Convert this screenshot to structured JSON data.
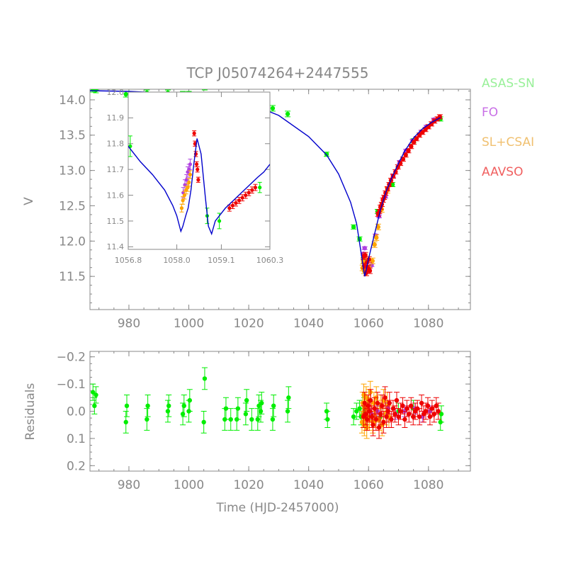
{
  "figure": {
    "title": "TCP J05074264+2447555",
    "xlabel": "Time (HJD-2457000)"
  },
  "legend": [
    {
      "label": "ASAS-SN",
      "color": "#98f098"
    },
    {
      "label": "FO",
      "color": "#c86ee6"
    },
    {
      "label": "SL+CSAI",
      "color": "#f0c070"
    },
    {
      "label": "AAVSO",
      "color": "#f06060"
    }
  ],
  "colors": {
    "asassn": "#00ee00",
    "fo": "#b040e0",
    "slcsai": "#ffa500",
    "aavso": "#ee0000",
    "model": "#0000cc",
    "axis": "#888888"
  },
  "chart_data": [
    {
      "id": "main",
      "type": "scatter",
      "title": "TCP J05074264+2447555",
      "xlabel": "",
      "ylabel": "V",
      "xlim": [
        967,
        1094
      ],
      "ylim": [
        14.15,
        11.03
      ],
      "xticks": [
        "980",
        "1000",
        "1020",
        "1040",
        "1060",
        "1080"
      ],
      "yticks": [
        "11.5",
        "12.0",
        "12.5",
        "13.0",
        "13.5",
        "14.0"
      ],
      "model_curve": {
        "name": "model",
        "x": [
          967,
          980,
          1000,
          1010,
          1020,
          1030,
          1040,
          1046,
          1050,
          1054,
          1056,
          1058,
          1058.5,
          1058.75,
          1059,
          1059.5,
          1060,
          1062,
          1064,
          1066,
          1068,
          1070,
          1072,
          1075,
          1078,
          1081,
          1084
        ],
        "y": [
          14.13,
          14.12,
          14.08,
          14.04,
          13.95,
          13.78,
          13.48,
          13.22,
          12.95,
          12.55,
          12.25,
          11.7,
          11.55,
          11.5,
          11.55,
          11.65,
          11.75,
          12.1,
          12.45,
          12.72,
          12.92,
          13.1,
          13.27,
          13.46,
          13.59,
          13.68,
          13.75
        ]
      },
      "series": [
        {
          "name": "ASAS-SN",
          "x": [
            968,
            969,
            979,
            986,
            993,
            998,
            1000,
            1005,
            1005.3,
            1012,
            1014,
            1016,
            1019,
            1021,
            1023,
            1024,
            1028,
            1033,
            1046,
            1055,
            1057,
            1058.4,
            1060,
            1063,
            1068,
            1075,
            1084
          ],
          "y": [
            14.15,
            14.14,
            14.08,
            14.1,
            14.1,
            14.08,
            14.08,
            14.05,
            14.18,
            14.03,
            14.02,
            14.0,
            14.0,
            13.97,
            13.92,
            13.88,
            13.88,
            13.8,
            13.23,
            12.2,
            12.03,
            11.73,
            11.6,
            12.42,
            12.8,
            13.42,
            13.73
          ],
          "err": [
            0.04,
            0.04,
            0.04,
            0.04,
            0.04,
            0.04,
            0.04,
            0.04,
            0.04,
            0.04,
            0.04,
            0.04,
            0.04,
            0.04,
            0.04,
            0.04,
            0.04,
            0.04,
            0.03,
            0.03,
            0.03,
            0.04,
            0.04,
            0.03,
            0.03,
            0.03,
            0.03
          ]
        },
        {
          "name": "FO",
          "x": [
            1058.3,
            1058.7,
            1059.2,
            1060.1,
            1061.0,
            1062.3,
            1063.5,
            1065.6,
            1068.2,
            1070.4,
            1072.5,
            1074.7,
            1077.6,
            1079.3,
            1081.8
          ],
          "y": [
            11.82,
            11.9,
            11.62,
            11.58,
            11.66,
            12.08,
            12.35,
            12.63,
            12.92,
            13.12,
            13.28,
            13.42,
            13.55,
            13.62,
            13.72
          ],
          "err": [
            0.02,
            0.02,
            0.02,
            0.02,
            0.02,
            0.02,
            0.02,
            0.02,
            0.02,
            0.02,
            0.02,
            0.02,
            0.02,
            0.02,
            0.02
          ]
        },
        {
          "name": "SL+CSAI",
          "x": [
            1058.0,
            1058.2,
            1058.5,
            1058.8,
            1059.2,
            1059.6,
            1060.2,
            1061.3,
            1062.0,
            1062.6,
            1063.2,
            1064.4,
            1066.3
          ],
          "y": [
            11.62,
            11.72,
            11.58,
            11.78,
            11.55,
            11.6,
            11.62,
            11.72,
            11.95,
            12.05,
            12.2,
            12.45,
            12.72
          ],
          "err": [
            0.04,
            0.04,
            0.04,
            0.04,
            0.04,
            0.04,
            0.04,
            0.04,
            0.04,
            0.04,
            0.04,
            0.04,
            0.04
          ]
        },
        {
          "name": "AAVSO",
          "x": [
            1058.3,
            1058.6,
            1058.9,
            1059.2,
            1059.5,
            1059.8,
            1060.1,
            1060.4,
            1063.2,
            1063.6,
            1064.0,
            1064.4,
            1064.8,
            1065.2,
            1065.7,
            1066.3,
            1066.9,
            1067.5,
            1068.2,
            1069.0,
            1069.8,
            1070.6,
            1071.5,
            1072.4,
            1073.3,
            1074.2,
            1075.1,
            1076.0,
            1077.0,
            1078.0,
            1079.0,
            1080.0,
            1081.0,
            1082.0,
            1083.0,
            1083.8
          ],
          "y": [
            11.78,
            11.65,
            11.8,
            11.55,
            11.7,
            11.62,
            11.74,
            11.58,
            12.38,
            12.42,
            12.48,
            12.52,
            12.58,
            12.62,
            12.68,
            12.74,
            12.8,
            12.86,
            12.92,
            12.98,
            13.05,
            13.1,
            13.16,
            13.22,
            13.28,
            13.34,
            13.4,
            13.45,
            13.5,
            13.54,
            13.58,
            13.62,
            13.66,
            13.7,
            13.73,
            13.76
          ],
          "err": [
            0.04,
            0.04,
            0.04,
            0.04,
            0.04,
            0.04,
            0.04,
            0.04,
            0.03,
            0.03,
            0.03,
            0.03,
            0.03,
            0.03,
            0.03,
            0.03,
            0.03,
            0.03,
            0.03,
            0.03,
            0.03,
            0.03,
            0.03,
            0.03,
            0.03,
            0.03,
            0.03,
            0.03,
            0.03,
            0.03,
            0.03,
            0.03,
            0.03,
            0.03,
            0.03,
            0.03
          ]
        }
      ]
    },
    {
      "id": "inset",
      "type": "scatter",
      "title": "",
      "xlabel": "",
      "ylabel": "",
      "xlim": [
        1056.8,
        1060.3
      ],
      "ylim": [
        12.0,
        11.39
      ],
      "xticks": [
        "1056.8",
        "1058.0",
        "1059.1",
        "1060.3"
      ],
      "yticks": [
        "11.4",
        "11.5",
        "11.6",
        "11.7",
        "11.8",
        "11.9",
        "12.0"
      ],
      "model_curve": {
        "name": "model",
        "x": [
          1056.8,
          1057.1,
          1057.4,
          1057.7,
          1057.9,
          1058.0,
          1058.1,
          1058.15,
          1058.22,
          1058.28,
          1058.35,
          1058.42,
          1058.5,
          1058.6,
          1058.7,
          1058.78,
          1058.86,
          1058.95,
          1059.05,
          1059.2,
          1059.4,
          1059.6,
          1059.8,
          1060.0,
          1060.15,
          1060.3
        ],
        "y": [
          11.79,
          11.73,
          11.68,
          11.62,
          11.56,
          11.52,
          11.46,
          11.48,
          11.52,
          11.55,
          11.62,
          11.72,
          11.82,
          11.76,
          11.6,
          11.48,
          11.45,
          11.5,
          11.52,
          11.55,
          11.58,
          11.61,
          11.64,
          11.67,
          11.69,
          11.72
        ]
      },
      "series": [
        {
          "name": "ASAS-SN",
          "x": [
            1056.85,
            1058.75,
            1059.05,
            1060.05
          ],
          "y": [
            11.79,
            11.52,
            11.5,
            11.63
          ],
          "err": [
            0.04,
            0.03,
            0.03,
            0.02
          ]
        },
        {
          "name": "FO",
          "x": [
            1058.16,
            1058.2,
            1058.24,
            1058.27,
            1058.3,
            1058.33
          ],
          "y": [
            11.61,
            11.64,
            11.66,
            11.69,
            11.7,
            11.72
          ],
          "err": [
            0.02,
            0.02,
            0.02,
            0.02,
            0.02,
            0.02
          ]
        },
        {
          "name": "SL+CSAI",
          "x": [
            1058.12,
            1058.15,
            1058.19,
            1058.23,
            1058.27,
            1058.3,
            1058.33
          ],
          "y": [
            11.55,
            11.58,
            11.6,
            11.62,
            11.63,
            11.65,
            11.68
          ],
          "err": [
            0.015,
            0.015,
            0.015,
            0.015,
            0.015,
            0.015,
            0.015
          ]
        },
        {
          "name": "AAVSO",
          "x": [
            1058.43,
            1058.45,
            1058.47,
            1058.49,
            1058.51,
            1058.53,
            1059.3,
            1059.38,
            1059.46,
            1059.54,
            1059.62,
            1059.7,
            1059.78,
            1059.86,
            1059.94
          ],
          "y": [
            11.84,
            11.8,
            11.76,
            11.72,
            11.7,
            11.66,
            11.55,
            11.56,
            11.57,
            11.58,
            11.59,
            11.6,
            11.61,
            11.62,
            11.63
          ],
          "err": [
            0.01,
            0.01,
            0.01,
            0.01,
            0.01,
            0.01,
            0.012,
            0.012,
            0.012,
            0.012,
            0.012,
            0.012,
            0.012,
            0.012,
            0.012
          ]
        }
      ]
    },
    {
      "id": "residuals",
      "type": "scatter",
      "title": "",
      "xlabel": "Time (HJD-2457000)",
      "ylabel": "Residuals",
      "xlim": [
        967,
        1094
      ],
      "ylim": [
        -0.22,
        0.22
      ],
      "xticks": [
        "980",
        "1000",
        "1020",
        "1040",
        "1060",
        "1080"
      ],
      "yticks": [
        "0.2",
        "0.1",
        "0.0",
        "−0.1",
        "−0.2"
      ],
      "series": [
        {
          "name": "ASAS-SN",
          "x": [
            968,
            968.5,
            969,
            979,
            979.3,
            986,
            986.3,
            993,
            993.3,
            998,
            998.4,
            1000,
            1000.3,
            1005,
            1005.3,
            1012,
            1012.4,
            1014,
            1016,
            1016.4,
            1019,
            1019.3,
            1021,
            1023,
            1023.4,
            1024,
            1024.3,
            1028,
            1028.3,
            1033,
            1033.3,
            1046,
            1046.3,
            1055,
            1056,
            1057,
            1057.5,
            1058.5,
            1064,
            1070,
            1075,
            1084,
            1084.3
          ],
          "y": [
            -0.07,
            -0.02,
            -0.06,
            0.04,
            -0.02,
            0.03,
            -0.02,
            0.0,
            -0.02,
            0.01,
            -0.02,
            0.0,
            -0.04,
            0.04,
            -0.12,
            0.03,
            -0.01,
            0.03,
            0.03,
            -0.01,
            0.01,
            -0.04,
            0.03,
            0.03,
            -0.02,
            0.0,
            -0.03,
            0.03,
            -0.02,
            0.0,
            -0.05,
            0.0,
            0.03,
            0.02,
            0.0,
            -0.01,
            0.02,
            -0.02,
            0.02,
            0.0,
            -0.01,
            0.04,
            0.01
          ],
          "err": [
            0.03,
            0.03,
            0.03,
            0.04,
            0.04,
            0.04,
            0.04,
            0.04,
            0.04,
            0.04,
            0.04,
            0.04,
            0.04,
            0.04,
            0.04,
            0.04,
            0.04,
            0.04,
            0.04,
            0.04,
            0.04,
            0.04,
            0.04,
            0.04,
            0.04,
            0.04,
            0.04,
            0.04,
            0.04,
            0.04,
            0.04,
            0.03,
            0.03,
            0.03,
            0.03,
            0.03,
            0.03,
            0.03,
            0.03,
            0.03,
            0.03,
            0.03,
            0.03
          ]
        },
        {
          "name": "SL+CSAI",
          "x": [
            1057.8,
            1058.0,
            1058.2,
            1058.4,
            1058.6,
            1058.8,
            1059.0,
            1059.2,
            1059.4,
            1059.6,
            1059.8,
            1060.0,
            1060.3,
            1060.6,
            1061.0,
            1061.4,
            1061.8,
            1062.2,
            1062.6,
            1063.0,
            1063.5,
            1064.0,
            1064.5,
            1065.0,
            1065.6,
            1066.2,
            1066.8
          ],
          "y": [
            0.04,
            -0.03,
            0.02,
            -0.06,
            0.05,
            -0.02,
            0.03,
            -0.05,
            0.06,
            -0.01,
            0.02,
            -0.04,
            0.03,
            -0.07,
            0.01,
            0.04,
            -0.03,
            0.02,
            -0.05,
            0.0,
            0.03,
            -0.02,
            0.05,
            -0.04,
            0.01,
            -0.03,
            0.02
          ],
          "err": [
            0.04,
            0.04,
            0.04,
            0.04,
            0.04,
            0.04,
            0.04,
            0.04,
            0.04,
            0.04,
            0.04,
            0.04,
            0.04,
            0.04,
            0.04,
            0.04,
            0.04,
            0.04,
            0.04,
            0.04,
            0.04,
            0.04,
            0.04,
            0.04,
            0.04,
            0.04,
            0.04
          ]
        },
        {
          "name": "FO",
          "x": [
            1061.0,
            1063.0,
            1066.5,
            1069.0,
            1072.0,
            1075.5,
            1078.0,
            1080.5
          ],
          "y": [
            0.01,
            0.0,
            -0.01,
            0.01,
            0.0,
            -0.01,
            0.02,
            0.0
          ],
          "err": [
            0.02,
            0.02,
            0.02,
            0.02,
            0.02,
            0.02,
            0.02,
            0.02
          ]
        },
        {
          "name": "AAVSO",
          "x": [
            1058.3,
            1058.7,
            1059.1,
            1059.5,
            1059.9,
            1060.3,
            1060.7,
            1061.1,
            1061.5,
            1062.0,
            1062.5,
            1063.0,
            1063.5,
            1064.0,
            1064.5,
            1065.0,
            1065.5,
            1066.0,
            1066.5,
            1067.0,
            1067.6,
            1068.2,
            1068.8,
            1069.4,
            1070.0,
            1070.7,
            1071.4,
            1072.1,
            1072.8,
            1073.5,
            1074.2,
            1074.9,
            1075.6,
            1076.3,
            1077.0,
            1077.7,
            1078.4,
            1079.1,
            1079.8,
            1080.5,
            1081.2,
            1081.9,
            1082.6,
            1083.3
          ],
          "y": [
            0.02,
            -0.03,
            0.01,
            0.03,
            -0.02,
            0.0,
            -0.04,
            0.02,
            0.05,
            -0.01,
            0.03,
            -0.03,
            0.06,
            0.01,
            -0.02,
            0.04,
            -0.05,
            0.02,
            0.0,
            -0.03,
            0.03,
            -0.01,
            0.01,
            -0.04,
            0.02,
            0.0,
            -0.02,
            0.03,
            -0.01,
            0.01,
            -0.02,
            0.02,
            0.0,
            -0.01,
            0.02,
            -0.03,
            0.01,
            0.0,
            -0.02,
            0.02,
            -0.01,
            0.01,
            -0.02,
            0.0
          ],
          "err": [
            0.04,
            0.04,
            0.04,
            0.04,
            0.04,
            0.04,
            0.04,
            0.04,
            0.04,
            0.04,
            0.04,
            0.04,
            0.04,
            0.04,
            0.04,
            0.04,
            0.04,
            0.04,
            0.04,
            0.04,
            0.03,
            0.03,
            0.03,
            0.03,
            0.03,
            0.03,
            0.03,
            0.03,
            0.03,
            0.03,
            0.03,
            0.03,
            0.03,
            0.03,
            0.03,
            0.03,
            0.03,
            0.03,
            0.03,
            0.03,
            0.03,
            0.03,
            0.03,
            0.03
          ]
        }
      ]
    }
  ]
}
